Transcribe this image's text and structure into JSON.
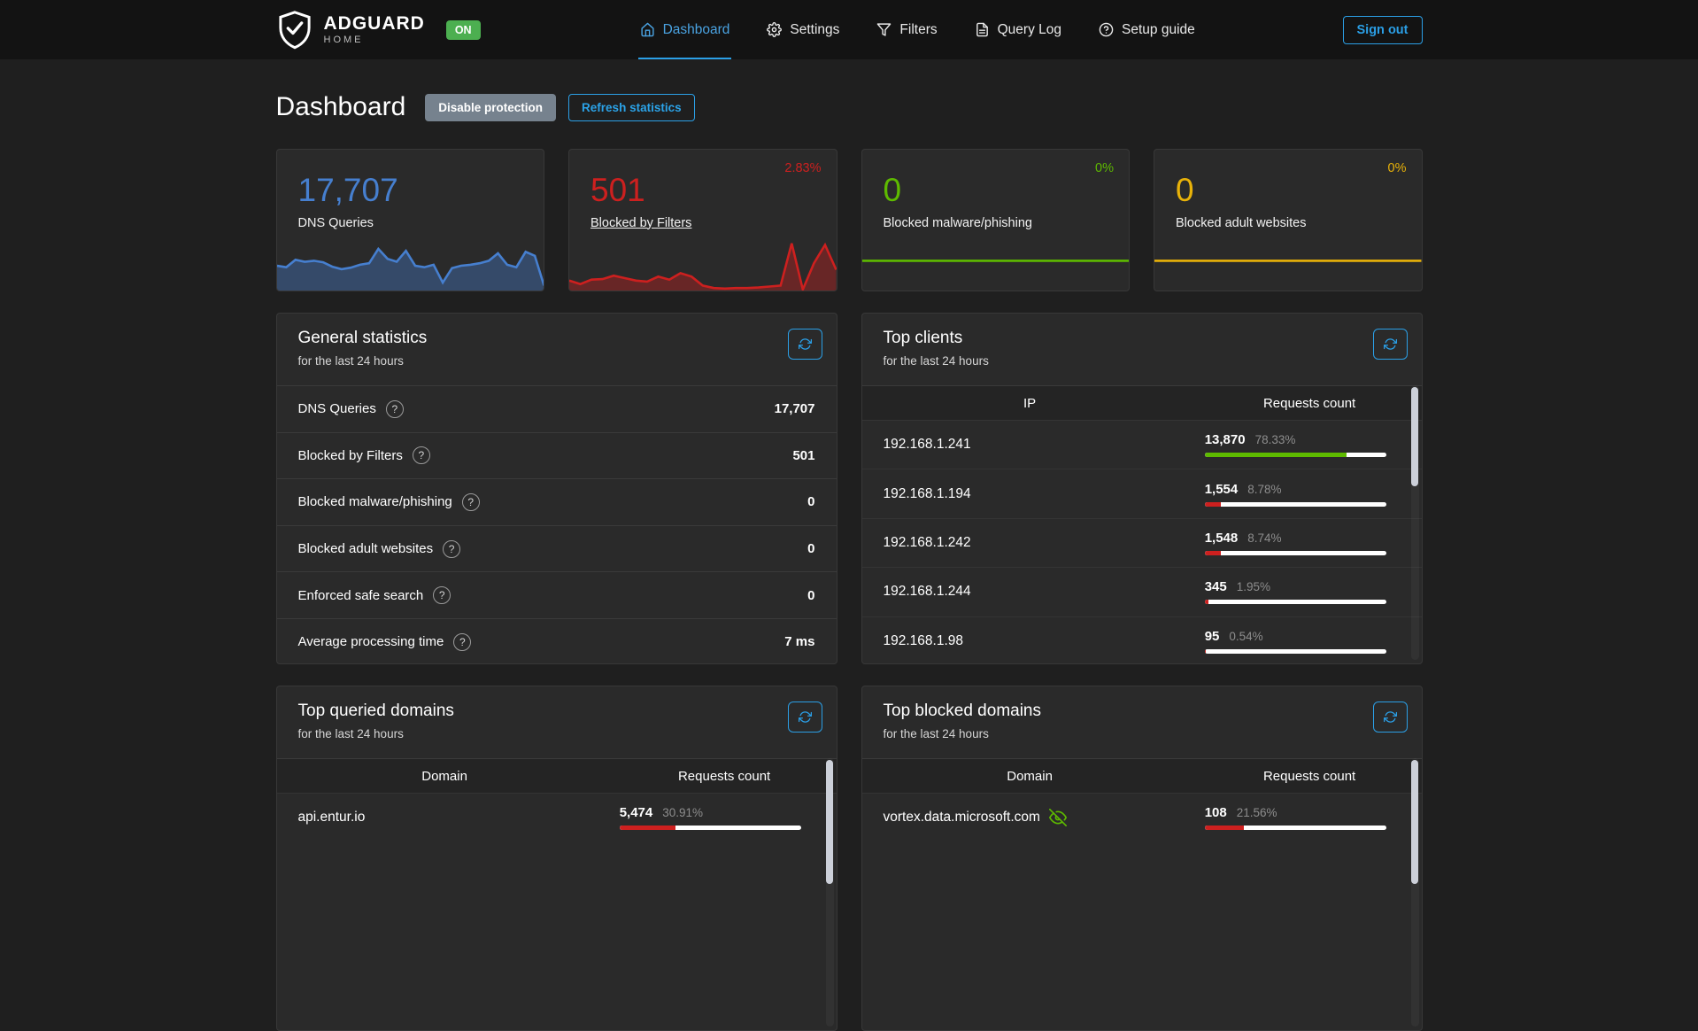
{
  "colors": {
    "accent": "#2b9fe6",
    "blue": "#467fcf",
    "red": "#cd201f",
    "green": "#5eba00",
    "yellow": "#e8b209"
  },
  "navbar": {
    "logo_title": "ADGUARD",
    "logo_subtitle": "HOME",
    "status_badge": "ON",
    "items": [
      {
        "label": "Dashboard",
        "icon": "home-icon",
        "active": true
      },
      {
        "label": "Settings",
        "icon": "gear-icon",
        "active": false
      },
      {
        "label": "Filters",
        "icon": "filter-icon",
        "active": false
      },
      {
        "label": "Query Log",
        "icon": "document-icon",
        "active": false
      },
      {
        "label": "Setup guide",
        "icon": "help-icon",
        "active": false
      }
    ],
    "signout_label": "Sign out"
  },
  "page": {
    "title": "Dashboard",
    "disable_protection_label": "Disable protection",
    "refresh_statistics_label": "Refresh statistics"
  },
  "stat_cards": [
    {
      "value": "17,707",
      "label": "DNS Queries",
      "percent": "",
      "color": "#467fcf",
      "link": false,
      "fill": true,
      "sparkline": [
        0.5,
        0.47,
        0.62,
        0.58,
        0.6,
        0.57,
        0.48,
        0.43,
        0.46,
        0.52,
        0.55,
        0.84,
        0.64,
        0.58,
        0.8,
        0.5,
        0.47,
        0.52,
        0.16,
        0.45,
        0.5,
        0.52,
        0.55,
        0.6,
        0.75,
        0.52,
        0.47,
        0.78,
        0.7,
        0.1
      ]
    },
    {
      "value": "501",
      "label": "Blocked by Filters",
      "percent": "2.83%",
      "color": "#cd201f",
      "link": true,
      "fill": true,
      "sparkline": [
        0.2,
        0.13,
        0.22,
        0.23,
        0.3,
        0.25,
        0.2,
        0.18,
        0.28,
        0.22,
        0.35,
        0.28,
        0.1,
        0.05,
        0.04,
        0.05,
        0.05,
        0.06,
        0.08,
        0.1,
        0.95,
        0.02,
        0.55,
        0.92,
        0.42
      ]
    },
    {
      "value": "0",
      "label": "Blocked malware/phishing",
      "percent": "0%",
      "color": "#5eba00",
      "link": false,
      "fill": false,
      "sparkline": [
        0.6,
        0.6
      ]
    },
    {
      "value": "0",
      "label": "Blocked adult websites",
      "percent": "0%",
      "color": "#e8b209",
      "link": false,
      "fill": false,
      "sparkline": [
        0.6,
        0.6
      ]
    }
  ],
  "general_statistics": {
    "title": "General statistics",
    "subtitle": "for the last 24 hours",
    "rows": [
      {
        "label": "DNS Queries",
        "value": "17,707"
      },
      {
        "label": "Blocked by Filters",
        "value": "501"
      },
      {
        "label": "Blocked malware/phishing",
        "value": "0"
      },
      {
        "label": "Blocked adult websites",
        "value": "0"
      },
      {
        "label": "Enforced safe search",
        "value": "0"
      },
      {
        "label": "Average processing time",
        "value": "7 ms"
      }
    ]
  },
  "top_clients": {
    "title": "Top clients",
    "subtitle": "for the last 24 hours",
    "col1": "IP",
    "col2": "Requests count",
    "rows": [
      {
        "name": "192.168.1.241",
        "count": "13,870",
        "percent": "78.33%",
        "fill": 78.33,
        "bar_color": "#5eba00"
      },
      {
        "name": "192.168.1.194",
        "count": "1,554",
        "percent": "8.78%",
        "fill": 8.78,
        "bar_color": "#cd201f"
      },
      {
        "name": "192.168.1.242",
        "count": "1,548",
        "percent": "8.74%",
        "fill": 8.74,
        "bar_color": "#cd201f"
      },
      {
        "name": "192.168.1.244",
        "count": "345",
        "percent": "1.95%",
        "fill": 1.95,
        "bar_color": "#cd201f"
      },
      {
        "name": "192.168.1.98",
        "count": "95",
        "percent": "0.54%",
        "fill": 0.54,
        "bar_color": "#cd201f"
      }
    ],
    "scrollbar_thumb": 112
  },
  "top_queried_domains": {
    "title": "Top queried domains",
    "subtitle": "for the last 24 hours",
    "col1": "Domain",
    "col2": "Requests count",
    "rows": [
      {
        "name": "api.entur.io",
        "count": "5,474",
        "percent": "30.91%",
        "fill": 30.91,
        "bar_color": "#cd201f"
      }
    ],
    "scrollbar_thumb": 140
  },
  "top_blocked_domains": {
    "title": "Top blocked domains",
    "subtitle": "for the last 24 hours",
    "col1": "Domain",
    "col2": "Requests count",
    "rows": [
      {
        "name": "vortex.data.microsoft.com",
        "icon": "eye-off-icon",
        "count": "108",
        "percent": "21.56%",
        "fill": 21.56,
        "bar_color": "#cd201f"
      }
    ],
    "scrollbar_thumb": 140
  }
}
